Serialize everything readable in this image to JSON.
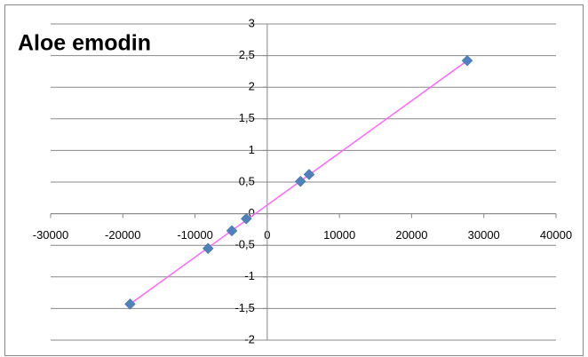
{
  "chart_data": {
    "type": "scatter",
    "title": "Aloe emodin",
    "series": [
      {
        "name": "Aloe emodin",
        "color": "#4f81bd",
        "x": [
          -19000,
          -8200,
          -4900,
          -2900,
          4600,
          5800,
          27700
        ],
        "values": [
          -1.43,
          -0.55,
          -0.27,
          -0.08,
          0.51,
          0.62,
          2.42
        ]
      }
    ],
    "trendline": {
      "x": [
        -19000,
        27700
      ],
      "values": [
        -1.43,
        2.42
      ],
      "color": "#ff66ff"
    },
    "xlim": [
      -30000,
      40000
    ],
    "xticks": [
      -30000,
      -20000,
      -10000,
      0,
      10000,
      20000,
      30000,
      40000
    ],
    "ylim": [
      -2,
      3
    ],
    "yticks": [
      -2,
      {
        "value": -1.5,
        "label": "-1,5"
      },
      -1,
      {
        "value": -0.5,
        "label": "-0,5"
      },
      0,
      {
        "value": 0.5,
        "label": "0,5"
      },
      1,
      {
        "value": 1.5,
        "label": "1,5"
      },
      2,
      {
        "value": 2.5,
        "label": "2,5"
      },
      3
    ],
    "grid": true
  }
}
